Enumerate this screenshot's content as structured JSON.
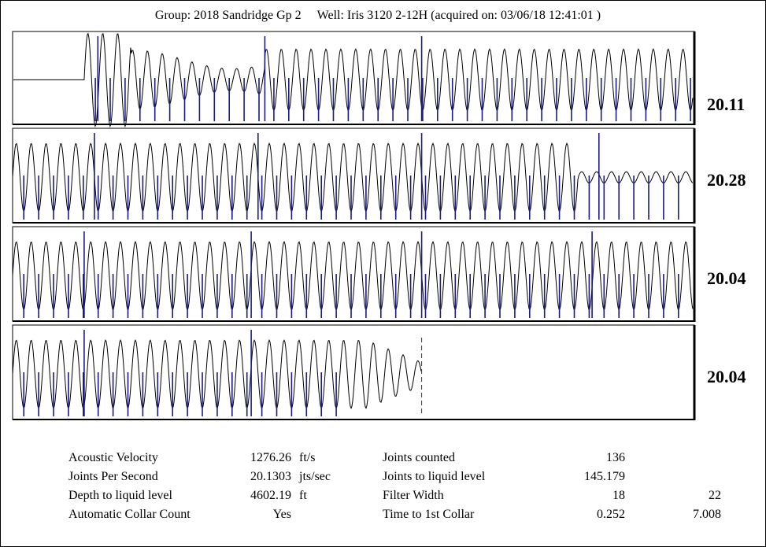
{
  "header": {
    "group": "Group: 2018 Sandridge Gp 2",
    "well": "Well: Iris 3120 2-12H (acquired on: 03/06/18 12:41:01 )"
  },
  "colors": {
    "trace": "#000000",
    "collar": "#1a1a8c",
    "frame": "#000000"
  },
  "chart_data": {
    "type": "line",
    "title": "",
    "panels": [
      {
        "joints_per_second": "20.11",
        "start_fraction": 0.105,
        "liquid_level_fraction": null,
        "major_collars": [
          0.125,
          0.37,
          0.6
        ]
      },
      {
        "joints_per_second": "20.28",
        "start_fraction": 0.0,
        "liquid_level_fraction": null,
        "quiet_from": 0.83,
        "major_collars": [
          0.12,
          0.36,
          0.6,
          0.86
        ]
      },
      {
        "joints_per_second": "20.04",
        "start_fraction": 0.0,
        "liquid_level_fraction": null,
        "major_collars": [
          0.105,
          0.35,
          0.6,
          0.85
        ]
      },
      {
        "joints_per_second": "20.04",
        "start_fraction": 0.0,
        "liquid_level_fraction": 0.6,
        "major_collars": [
          0.105,
          0.35
        ]
      }
    ]
  },
  "summary": {
    "left": [
      {
        "label": "Acoustic Velocity",
        "value": "1276.26",
        "unit": "ft/s"
      },
      {
        "label": "Joints Per Second",
        "value": "20.1303",
        "unit": "jts/sec"
      },
      {
        "label": "Depth to liquid level",
        "value": "4602.19",
        "unit": "ft"
      },
      {
        "label": "Automatic Collar Count",
        "value": "Yes",
        "unit": ""
      }
    ],
    "right": [
      {
        "label": "Joints counted",
        "value": "136",
        "extra": ""
      },
      {
        "label": "Joints to liquid level",
        "value": "145.179",
        "extra": ""
      },
      {
        "label": "Filter Width",
        "value": "18",
        "extra": "22"
      },
      {
        "label": "Time to 1st Collar",
        "value": "0.252",
        "extra": "7.008"
      }
    ]
  }
}
